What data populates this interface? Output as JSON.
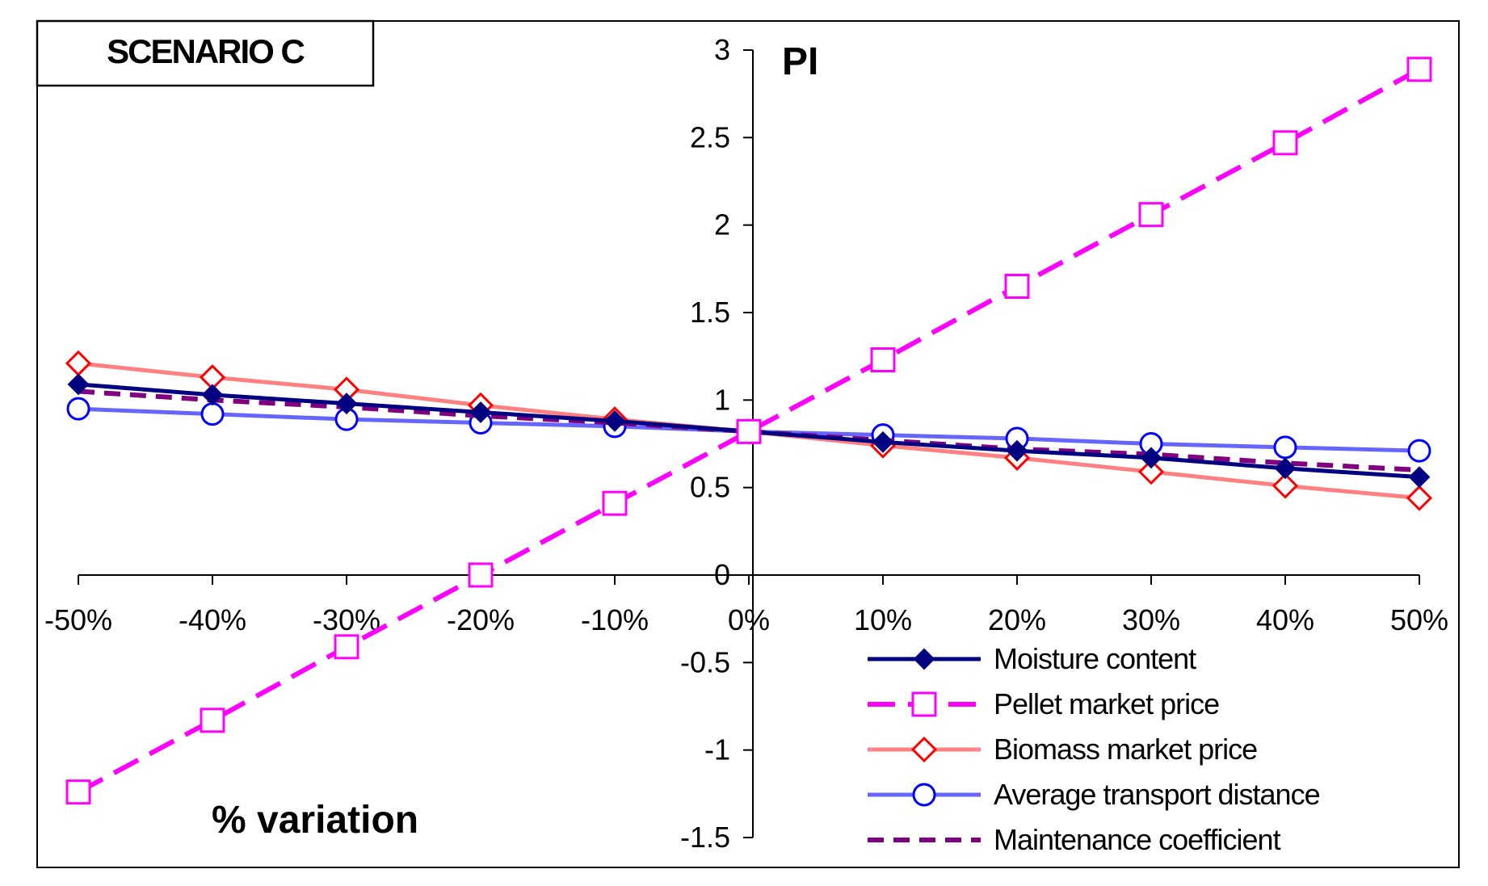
{
  "chart_data": {
    "type": "line",
    "title": "SCENARIO C",
    "ylabel": "PI",
    "xlabel": "% variation",
    "categories": [
      "-50%",
      "-40%",
      "-30%",
      "-20%",
      "-10%",
      "0%",
      "10%",
      "20%",
      "30%",
      "40%",
      "50%"
    ],
    "x": [
      -50,
      -40,
      -30,
      -20,
      -10,
      0,
      10,
      20,
      30,
      40,
      50
    ],
    "ylim": [
      -1.5,
      3
    ],
    "yticks": [
      "3",
      "2.5",
      "2",
      "1.5",
      "1",
      "0.5",
      "0",
      "-0.5",
      "-1",
      "-1.5"
    ],
    "ytick_values": [
      3,
      2.5,
      2,
      1.5,
      1,
      0.5,
      0,
      -0.5,
      -1,
      -1.5
    ],
    "legend_position": "bottom-right",
    "series": [
      {
        "name": "Moisture content",
        "values": [
          1.09,
          1.03,
          0.98,
          0.93,
          0.88,
          0.82,
          0.76,
          0.71,
          0.67,
          0.61,
          0.56
        ],
        "color": "#000080",
        "marker": "diamond-filled",
        "dash": "solid"
      },
      {
        "name": "Pellet market price",
        "values": [
          -1.24,
          -0.83,
          -0.41,
          0.0,
          0.41,
          0.82,
          1.23,
          1.65,
          2.06,
          2.47,
          2.89
        ],
        "color": "#ff00ff",
        "marker": "square-open",
        "dash": "long"
      },
      {
        "name": "Biomass market price",
        "values": [
          1.21,
          1.13,
          1.06,
          0.97,
          0.89,
          0.82,
          0.74,
          0.67,
          0.59,
          0.51,
          0.44
        ],
        "color": "#ff8080",
        "markerColor": "#ff0000",
        "marker": "diamond-open",
        "dash": "solid"
      },
      {
        "name": "Average transport distance",
        "values": [
          0.95,
          0.92,
          0.89,
          0.87,
          0.85,
          0.82,
          0.8,
          0.78,
          0.75,
          0.73,
          0.71
        ],
        "color": "#6666ff",
        "markerColor": "#0000ff",
        "marker": "circle-open",
        "dash": "solid"
      },
      {
        "name": "Maintenance coefficient",
        "values": [
          1.05,
          1.0,
          0.96,
          0.91,
          0.87,
          0.82,
          0.77,
          0.72,
          0.69,
          0.64,
          0.6
        ],
        "color": "#800080",
        "marker": "none",
        "dash": "short"
      }
    ]
  }
}
